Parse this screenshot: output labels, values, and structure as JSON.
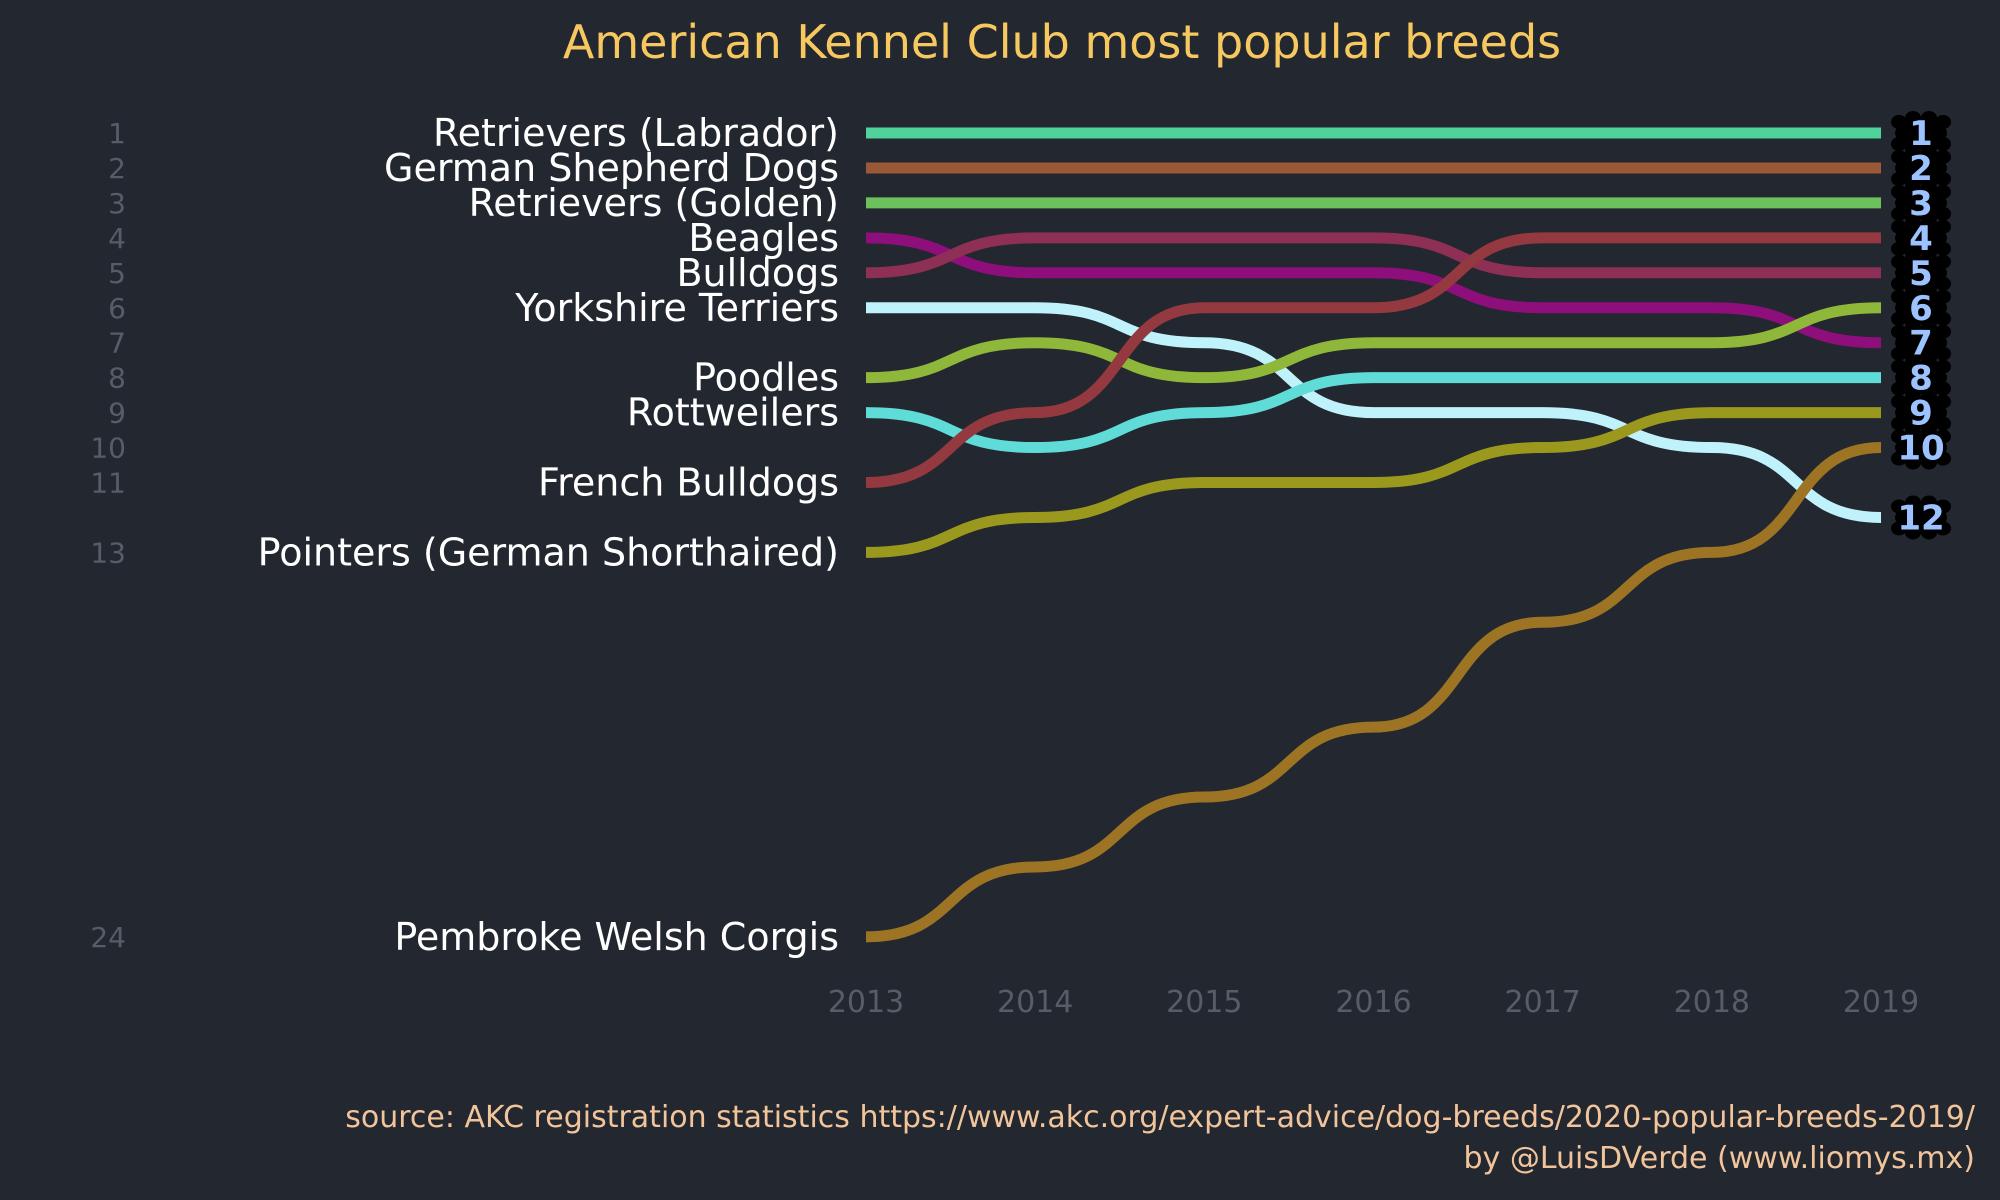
{
  "chart_data": {
    "type": "line",
    "subtype": "bump",
    "title": "American Kennel Club most popular breeds",
    "x": [
      "2013",
      "2014",
      "2015",
      "2016",
      "2017",
      "2018",
      "2019"
    ],
    "y_reversed": true,
    "grid": false,
    "legend": "none",
    "left_rank_ticks": [
      "1",
      "2",
      "3",
      "4",
      "5",
      "6",
      "7",
      "8",
      "9",
      "10",
      "11",
      "13",
      "24"
    ],
    "series": [
      {
        "name": "Retrievers (Labrador)",
        "color": "#4fd39a",
        "values": [
          1,
          1,
          1,
          1,
          1,
          1,
          1
        ],
        "end_label": "1"
      },
      {
        "name": "German Shepherd Dogs",
        "color": "#9b5836",
        "values": [
          2,
          2,
          2,
          2,
          2,
          2,
          2
        ],
        "end_label": "2"
      },
      {
        "name": "Retrievers (Golden)",
        "color": "#6cc15c",
        "values": [
          3,
          3,
          3,
          3,
          3,
          3,
          3
        ],
        "end_label": "3"
      },
      {
        "name": "Beagles",
        "color": "#8e0e7c",
        "values": [
          4,
          5,
          5,
          5,
          6,
          6,
          7
        ],
        "end_label": "7"
      },
      {
        "name": "Bulldogs",
        "color": "#8e2f55",
        "values": [
          5,
          4,
          4,
          4,
          5,
          5,
          5
        ],
        "end_label": "5"
      },
      {
        "name": "Yorkshire Terriers",
        "color": "#c0f2fb",
        "values": [
          6,
          6,
          7,
          9,
          9,
          10,
          12
        ],
        "end_label": "12"
      },
      {
        "name": "Poodles",
        "color": "#8fb73a",
        "values": [
          8,
          7,
          8,
          7,
          7,
          7,
          6
        ],
        "end_label": "6"
      },
      {
        "name": "Rottweilers",
        "color": "#5fdcd8",
        "values": [
          9,
          10,
          9,
          8,
          8,
          8,
          8
        ],
        "end_label": "8"
      },
      {
        "name": "French Bulldogs",
        "color": "#94393f",
        "values": [
          11,
          9,
          6,
          6,
          4,
          4,
          4
        ],
        "end_label": "4"
      },
      {
        "name": "Pointers (German Shorthaired)",
        "color": "#9b981e",
        "values": [
          13,
          12,
          11,
          11,
          10,
          9,
          9
        ],
        "end_label": "9"
      },
      {
        "name": "Pembroke Welsh Corgis",
        "color": "#9c7424",
        "values": [
          24,
          22,
          20,
          18,
          15,
          13,
          10
        ],
        "end_label": "10"
      }
    ]
  },
  "caption": {
    "source": "source: AKC registration statistics  https://www.akc.org/expert-advice/dog-breeds/2020-popular-breeds-2019/",
    "byline": "by @LuisDVerde (www.liomys.mx)"
  },
  "colors": {
    "background": "#23272f",
    "title": "#f6c85f",
    "caption": "#f2c49b",
    "end_label": "#9cc3ff",
    "paw_badge": "#000000"
  },
  "icons": {
    "end_marker": "paw-print-icon"
  }
}
